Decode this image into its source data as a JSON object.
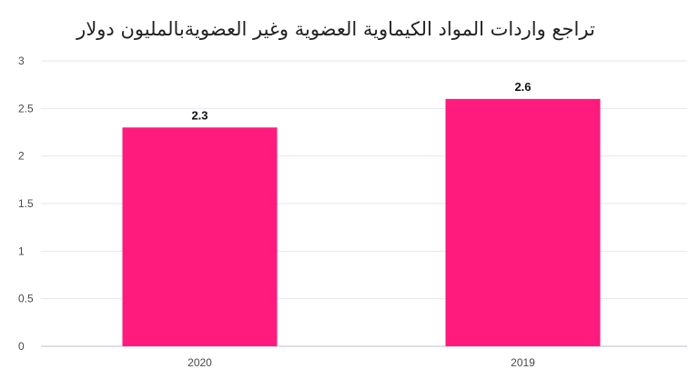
{
  "chart_data": {
    "type": "bar",
    "title": "تراجع واردات المواد الكيماوية العضوية وغير العضويةبالمليون دولار",
    "categories": [
      "2020",
      "2019"
    ],
    "values": [
      2.3,
      2.6
    ],
    "data_labels": [
      "2.3",
      "2.6"
    ],
    "xlabel": "",
    "ylabel": "",
    "ylim": [
      0,
      3
    ],
    "yticks": [
      "0",
      "0.5",
      "1",
      "1.5",
      "2",
      "2.5",
      "3"
    ],
    "grid": true,
    "legend": "none",
    "bar_color": "#ff1a7d",
    "grid_color": "#e6e6ee",
    "axis_color": "#c9c9dd"
  }
}
